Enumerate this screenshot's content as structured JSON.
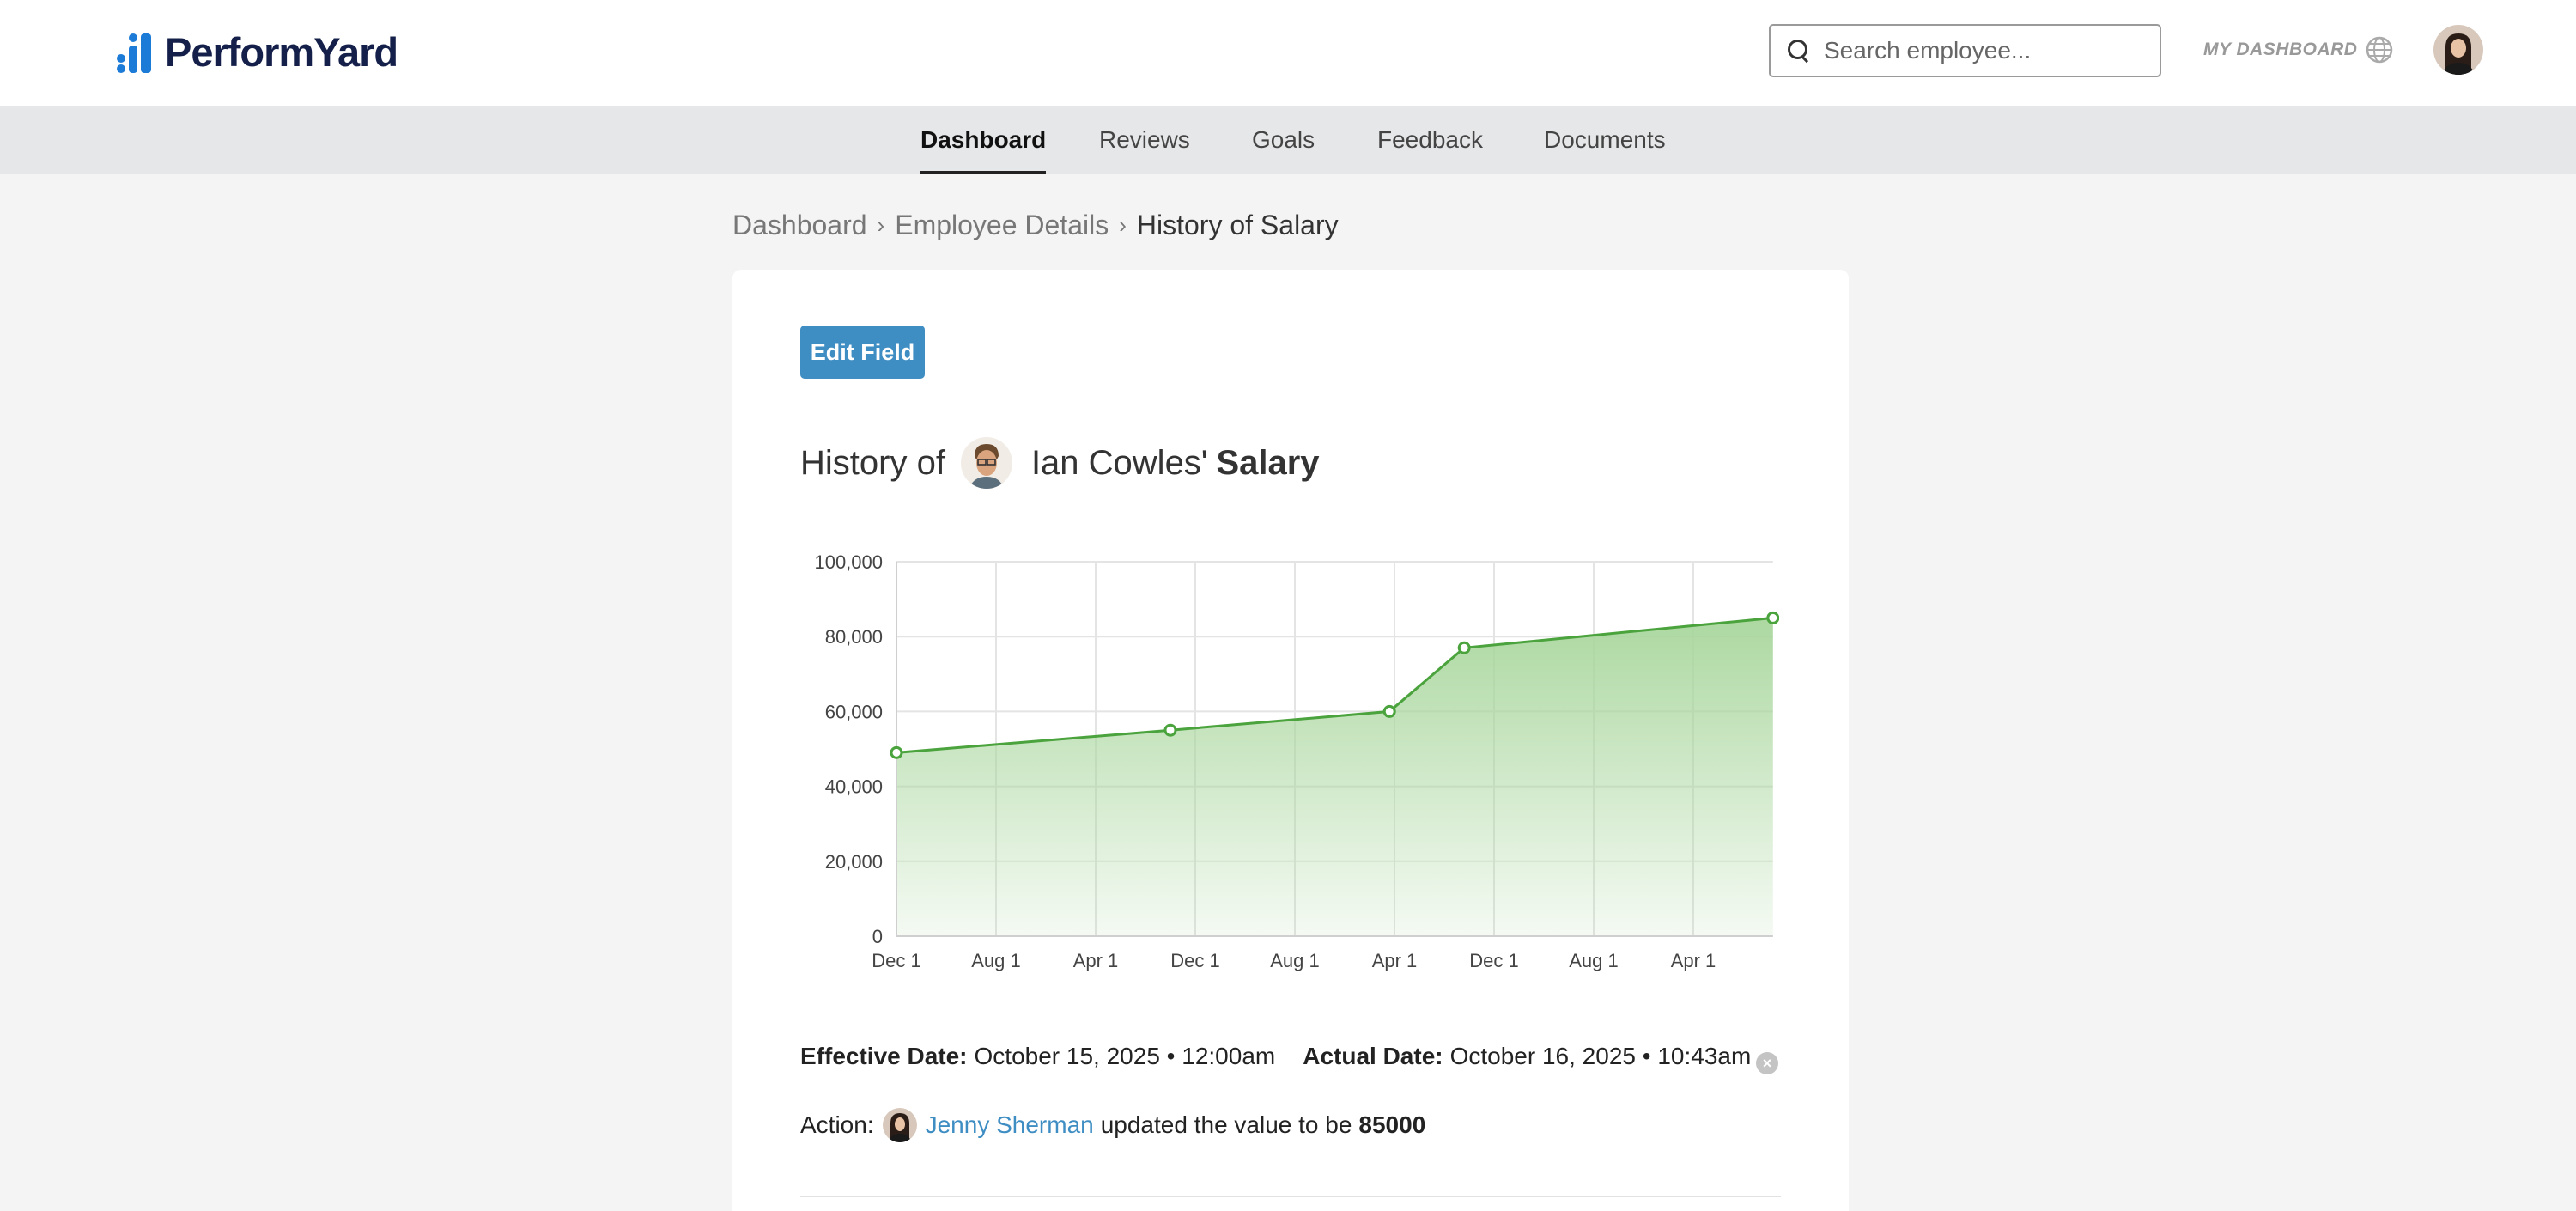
{
  "app": {
    "logo_text": "PerformYard",
    "brand_color": "#1c7bd6"
  },
  "header": {
    "search_placeholder": "Search employee...",
    "my_dashboard_label": "MY DASHBOARD",
    "globe_icon": "globe-icon"
  },
  "nav": {
    "tabs": [
      {
        "label": "Dashboard",
        "active": true
      },
      {
        "label": "Reviews",
        "active": false
      },
      {
        "label": "Goals",
        "active": false
      },
      {
        "label": "Feedback",
        "active": false
      },
      {
        "label": "Documents",
        "active": false
      }
    ]
  },
  "breadcrumb": {
    "items": [
      "Dashboard",
      "Employee Details",
      "History of Salary"
    ]
  },
  "main": {
    "edit_button_label": "Edit Field",
    "title_prefix": "History of",
    "employee_name": "Ian Cowles'",
    "field_name": "Salary"
  },
  "chart_data": {
    "type": "area",
    "x_tick_labels": [
      "Dec 1",
      "Aug 1",
      "Apr 1",
      "Dec 1",
      "Aug 1",
      "Apr 1",
      "Dec 1",
      "Aug 1",
      "Apr 1"
    ],
    "y_tick_labels": [
      "0",
      "20,000",
      "40,000",
      "60,000",
      "80,000",
      "100,000"
    ],
    "ylim": [
      0,
      100000
    ],
    "grid": true,
    "series_color": "#4aa33c",
    "points": [
      {
        "x_index": 0,
        "y": 49000
      },
      {
        "x_index": 2.75,
        "y": 55000
      },
      {
        "x_index": 4.95,
        "y": 60000
      },
      {
        "x_index": 5.7,
        "y": 77000
      },
      {
        "x_index": 8.8,
        "y": 85000
      }
    ],
    "x_max_index": 8.8
  },
  "details": {
    "effective_label": "Effective Date:",
    "effective_value": "October 15, 2025 • 12:00am",
    "actual_label": "Actual Date:",
    "actual_value": "October 16, 2025 • 10:43am",
    "action_label": "Action:",
    "actor_name": "Jenny Sherman",
    "action_text": "updated the value to be",
    "new_value": "85000",
    "close_icon": "×"
  }
}
